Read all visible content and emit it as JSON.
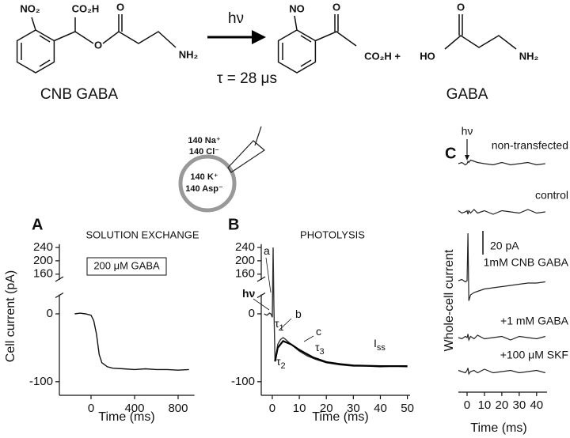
{
  "scheme": {
    "reactant": {
      "nitro": "NO₂",
      "acid": "CO₂H",
      "carbonyl": "O",
      "ester_oxygen": "O",
      "amine": "NH₂",
      "name": "CNB GABA"
    },
    "light": "hν",
    "lifetime": "τ = 28 μs",
    "product": {
      "nitroso": "NO",
      "carbonyl": "O",
      "acid": "CO₂H +"
    },
    "gaba": {
      "hydroxyl": "HO",
      "carbonyl": "O",
      "amine": "NH₂",
      "name": "GABA"
    }
  },
  "cell": {
    "outside": [
      "140 Na⁺",
      "140 Cl⁻"
    ],
    "inside": [
      "140 K⁺",
      "140 Asp⁻"
    ]
  },
  "chart_data": [
    {
      "type": "line",
      "panel": "A",
      "title": "SOLUTION EXCHANGE",
      "box_label": "200 μM GABA",
      "x_label": "Time (ms)",
      "y_label": "Cell current (pA)",
      "color": "#111111",
      "x": [
        -150,
        -100,
        -50,
        0,
        25,
        50,
        75,
        100,
        150,
        200,
        300,
        400,
        500,
        600,
        700,
        800,
        900
      ],
      "values": [
        0,
        1,
        0,
        -2,
        -10,
        -30,
        -60,
        -72,
        -78,
        -80,
        -81,
        -82,
        -81,
        -82,
        -82,
        -83,
        -82
      ],
      "xlim": [
        -200,
        950
      ],
      "xticks": [
        0,
        400,
        800
      ],
      "ylim": [
        -120,
        250
      ],
      "ybreak": [
        25,
        150
      ],
      "yticks": [
        -100,
        0,
        160,
        200,
        240
      ]
    },
    {
      "type": "line",
      "panel": "B",
      "title": "PHOTOLYSIS",
      "x_label": "Time (ms)",
      "series": [
        {
          "color": "#333333",
          "x": [
            -3,
            -2,
            -1,
            -0.5,
            0,
            0.3,
            0.6,
            1,
            1.5,
            2,
            3,
            4,
            5,
            7,
            10,
            13,
            16,
            20,
            25,
            30,
            35,
            40,
            45,
            50
          ],
          "values": [
            0,
            -2,
            1,
            0,
            -5,
            240,
            10,
            -70,
            -60,
            -45,
            -38,
            -35,
            -38,
            -45,
            -55,
            -62,
            -67,
            -72,
            -75,
            -77,
            -77,
            -78,
            -77,
            -78
          ]
        },
        {
          "color": "#000000",
          "x": [
            1,
            2,
            4,
            7,
            10,
            15,
            20,
            25,
            30,
            40,
            50
          ],
          "values": [
            -70,
            -50,
            -40,
            -45,
            -53,
            -64,
            -71,
            -74,
            -76,
            -77,
            -77
          ]
        }
      ],
      "annotations": [
        {
          "text": "a"
        },
        {
          "text": "hν"
        },
        {
          "text": "τ",
          "sub": "1"
        },
        {
          "text": "b"
        },
        {
          "text": "τ",
          "sub": "2"
        },
        {
          "text": "c"
        },
        {
          "text": "τ",
          "sub": "3"
        },
        {
          "text": "I",
          "sub": "ss"
        }
      ],
      "xlim": [
        -4,
        51
      ],
      "xticks": [
        0,
        10,
        20,
        30,
        40,
        50
      ],
      "ylim": [
        -120,
        250
      ],
      "ybreak": [
        25,
        150
      ],
      "yticks": [
        -100,
        0,
        160,
        200,
        240
      ]
    },
    {
      "type": "traces",
      "panel": "C",
      "x_label": "Time (ms)",
      "y_label": "Whole-cell current",
      "marker": "hν",
      "scale_bar": {
        "value": 20,
        "label": "20 pA"
      },
      "x": [
        -5,
        -3,
        -1,
        0,
        0.5,
        1,
        2,
        4,
        6,
        10,
        15,
        20,
        25,
        30,
        35,
        40,
        45
      ],
      "series": [
        {
          "name": "non-transfected",
          "color": "#222222",
          "values": [
            0,
            1,
            -1,
            0,
            2,
            1,
            3,
            2,
            1,
            0,
            -1,
            1,
            -1,
            0,
            1,
            -1,
            0
          ]
        },
        {
          "name": "control",
          "color": "#222222",
          "values": [
            1,
            -1,
            0,
            1,
            -2,
            1,
            -1,
            2,
            -1,
            1,
            -2,
            1,
            0,
            -1,
            2,
            -1,
            0
          ]
        },
        {
          "name": "1mM CNB GABA",
          "color": "#222222",
          "values": [
            0,
            1,
            -1,
            0,
            40,
            -17,
            -12,
            -10,
            -9,
            -7,
            -6,
            -5,
            -4,
            -3,
            -2,
            -2,
            -1
          ]
        },
        {
          "name": "+1 mM GABA",
          "color": "#222222",
          "values": [
            0,
            -1,
            1,
            0,
            3,
            -2,
            1,
            -1,
            2,
            -1,
            0,
            1,
            -2,
            1,
            0,
            -1,
            1
          ]
        },
        {
          "name": "+100 μM SKF",
          "color": "#222222",
          "values": [
            1,
            0,
            -1,
            1,
            3,
            -2,
            0,
            1,
            -1,
            2,
            -1,
            0,
            1,
            -1,
            0,
            1,
            -1
          ]
        }
      ],
      "xlim": [
        -5,
        46
      ],
      "xticks": [
        0,
        10,
        20,
        30,
        40
      ]
    }
  ]
}
